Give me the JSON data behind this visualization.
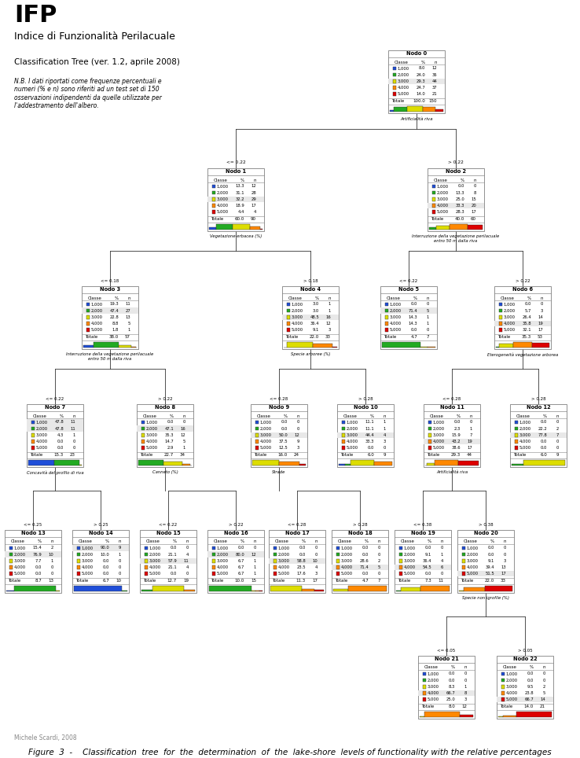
{
  "title_ifp": "IFP",
  "subtitle_ifp": "Indice di Funzionalità Perilacuale",
  "subtitle2": "Classification Tree (ver. 1.2, aprile 2008)",
  "note": "N.B. I dati riportati come frequenze percentuali e\nnumeri (% e n) sono riferiti ad un test set di 150\nosservazioni indipendenti da quelle utilizzate per\nl'addestramento dell'albero.",
  "footer": "Michele Scardi, 2008",
  "figure_caption": "Figure  3  -    Classification  tree  for  the  determination  of  the  lake-shore  levels of functionality with the relative percentages",
  "colors": [
    "#1f4ed8",
    "#22aa22",
    "#dddd00",
    "#ff8800",
    "#dd0000"
  ],
  "class_labels": [
    "1,000",
    "2,000",
    "3,000",
    "4,000",
    "5,000"
  ],
  "nodes": {
    "0": {
      "title": "Nodo 0",
      "pct": [
        8.0,
        24.0,
        29.3,
        24.7,
        14.0
      ],
      "n": [
        12,
        36,
        44,
        37,
        21
      ],
      "total_pct": 100.0,
      "total_n": 150
    },
    "1": {
      "title": "Nodo 1",
      "pct": [
        13.3,
        31.1,
        32.2,
        18.9,
        4.4
      ],
      "n": [
        12,
        28,
        29,
        17,
        4
      ],
      "total_pct": 60.0,
      "total_n": 90
    },
    "2": {
      "title": "Nodo 2",
      "pct": [
        0.0,
        13.3,
        25.0,
        33.3,
        28.3
      ],
      "n": [
        0,
        8,
        15,
        20,
        17
      ],
      "total_pct": 40.0,
      "total_n": 60
    },
    "3": {
      "title": "Nodo 3",
      "pct": [
        19.3,
        47.4,
        22.8,
        8.8,
        1.8
      ],
      "n": [
        11,
        27,
        13,
        5,
        1
      ],
      "total_pct": 38.0,
      "total_n": 57
    },
    "4": {
      "title": "Nodo 4",
      "pct": [
        3.0,
        3.0,
        48.5,
        36.4,
        9.1
      ],
      "n": [
        1,
        1,
        16,
        12,
        3
      ],
      "total_pct": 22.0,
      "total_n": 33
    },
    "5": {
      "title": "Nodo 5",
      "pct": [
        0.0,
        71.4,
        14.3,
        14.3,
        0.0
      ],
      "n": [
        0,
        5,
        1,
        1,
        0
      ],
      "total_pct": 4.7,
      "total_n": 7
    },
    "6": {
      "title": "Nodo 6",
      "pct": [
        0.0,
        5.7,
        26.4,
        35.8,
        32.1
      ],
      "n": [
        0,
        3,
        14,
        19,
        17
      ],
      "total_pct": 35.3,
      "total_n": 53
    },
    "7": {
      "title": "Nodo 7",
      "pct": [
        47.8,
        47.8,
        4.3,
        0.0,
        0.0
      ],
      "n": [
        11,
        11,
        1,
        0,
        0
      ],
      "total_pct": 15.3,
      "total_n": 23
    },
    "8": {
      "title": "Nodo 8",
      "pct": [
        0.0,
        47.1,
        35.3,
        14.7,
        2.9
      ],
      "n": [
        0,
        16,
        12,
        5,
        1
      ],
      "total_pct": 22.7,
      "total_n": 34
    },
    "9": {
      "title": "Nodo 9",
      "pct": [
        0.0,
        0.0,
        50.0,
        37.5,
        12.5
      ],
      "n": [
        0,
        0,
        12,
        9,
        3
      ],
      "total_pct": 16.0,
      "total_n": 24
    },
    "10": {
      "title": "Nodo 10",
      "pct": [
        11.1,
        11.1,
        44.4,
        33.3,
        0.0
      ],
      "n": [
        1,
        1,
        4,
        3,
        0
      ],
      "total_pct": 6.0,
      "total_n": 9
    },
    "11": {
      "title": "Nodo 11",
      "pct": [
        0.0,
        2.3,
        15.9,
        43.2,
        38.6
      ],
      "n": [
        0,
        1,
        7,
        19,
        17
      ],
      "total_pct": 29.3,
      "total_n": 44
    },
    "12": {
      "title": "Nodo 12",
      "pct": [
        0.0,
        22.2,
        77.8,
        0.0,
        0.0
      ],
      "n": [
        0,
        2,
        7,
        0,
        0
      ],
      "total_pct": 6.0,
      "total_n": 9
    },
    "13": {
      "title": "Nodo 13",
      "pct": [
        15.4,
        76.9,
        7.7,
        0.0,
        0.0
      ],
      "n": [
        2,
        10,
        1,
        0,
        0
      ],
      "total_pct": 8.7,
      "total_n": 13
    },
    "14": {
      "title": "Nodo 14",
      "pct": [
        90.0,
        10.0,
        0.0,
        0.0,
        0.0
      ],
      "n": [
        9,
        1,
        0,
        0,
        0
      ],
      "total_pct": 6.7,
      "total_n": 10
    },
    "15": {
      "title": "Nodo 15",
      "pct": [
        0.0,
        21.1,
        57.9,
        21.1,
        0.0
      ],
      "n": [
        0,
        4,
        11,
        4,
        0
      ],
      "total_pct": 12.7,
      "total_n": 19
    },
    "16": {
      "title": "Nodo 16",
      "pct": [
        0.0,
        80.0,
        6.7,
        6.7,
        6.7
      ],
      "n": [
        0,
        12,
        1,
        1,
        1
      ],
      "total_pct": 10.0,
      "total_n": 15
    },
    "17": {
      "title": "Nodo 17",
      "pct": [
        0.0,
        0.0,
        58.8,
        23.5,
        17.6
      ],
      "n": [
        0,
        0,
        10,
        4,
        3
      ],
      "total_pct": 11.3,
      "total_n": 17
    },
    "18": {
      "title": "Nodo 18",
      "pct": [
        0.0,
        0.0,
        28.6,
        71.4,
        0.0
      ],
      "n": [
        0,
        0,
        2,
        5,
        0
      ],
      "total_pct": 4.7,
      "total_n": 7
    },
    "19": {
      "title": "Nodo 19",
      "pct": [
        0.0,
        9.1,
        36.4,
        54.5,
        0.0
      ],
      "n": [
        0,
        1,
        4,
        6,
        0
      ],
      "total_pct": 7.3,
      "total_n": 11
    },
    "20": {
      "title": "Nodo 20",
      "pct": [
        0.0,
        0.0,
        9.1,
        39.4,
        51.5
      ],
      "n": [
        0,
        0,
        3,
        13,
        17
      ],
      "total_pct": 22.0,
      "total_n": 33
    },
    "21": {
      "title": "Nodo 21",
      "pct": [
        0.0,
        0.0,
        8.3,
        66.7,
        25.0
      ],
      "n": [
        0,
        0,
        1,
        8,
        3
      ],
      "total_pct": 8.0,
      "total_n": 12
    },
    "22": {
      "title": "Nodo 22",
      "pct": [
        0.0,
        0.0,
        9.5,
        23.8,
        66.7
      ],
      "n": [
        0,
        0,
        2,
        5,
        14
      ],
      "total_pct": 14.0,
      "total_n": 21
    }
  },
  "split_labels": {
    "0_1": "<= 0.22",
    "0_2": "> 0.22",
    "1_3": "<= 0.18",
    "1_4": "> 0.18",
    "2_5": "<= 0.22",
    "2_6": "> 0.22",
    "3_7": "<= 0.22",
    "3_8": "> 0.22",
    "4_9": "<= 0.28",
    "4_10": "> 0.28",
    "6_11": "<= 0.28",
    "6_12": "> 0.28",
    "7_13": "<= 0.25",
    "7_14": "> 0.25",
    "8_15": "<= 0.22",
    "8_16": "> 0.22",
    "9_17": "<= 0.28",
    "9_18": "> 0.28",
    "11_19": "<= 0.38",
    "11_20": "> 0.38",
    "20_21": "<= 0.05",
    "20_22": "> 0.05"
  },
  "split_vars": {
    "0": "Artificialità riva",
    "1": "Vegetazione erbacea (%)",
    "2": "Interruzione della vegetazione perilacuale\nentro 50 m dalla riva",
    "3": "Interruzione della vegetazione perilacuale\nentro 50 m dalla riva",
    "4": "Specie arboree (%)",
    "6": "Eterogeneità vegetazione arborea",
    "7": "Concavità del profilo di riva",
    "8": "Canneto (%)",
    "9": "Strade",
    "11": "Artificialità riva",
    "20": "Specie non igrofile (%)"
  },
  "bg_color": "#ffffff",
  "box_bg": "#f0f0f0",
  "box_border": "#888888"
}
